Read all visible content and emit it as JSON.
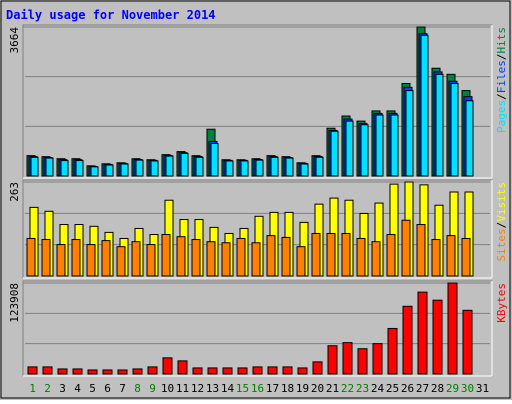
{
  "title": "Daily usage for November 2014",
  "separator": "/",
  "chart_data": [
    {
      "type": "bar",
      "ylim": [
        0,
        3664
      ],
      "yticks": [
        3664
      ],
      "series": [
        {
          "name": "Hits",
          "color": "#008040",
          "values": [
            500,
            475,
            425,
            425,
            250,
            300,
            325,
            425,
            400,
            525,
            600,
            500,
            1150,
            400,
            400,
            425,
            500,
            475,
            325,
            500,
            1175,
            1475,
            1350,
            1600,
            1600,
            2275,
            3664,
            2650,
            2500,
            2100,
            null
          ]
        },
        {
          "name": "Files",
          "color": "#0040ff",
          "values": [
            480,
            455,
            400,
            400,
            235,
            285,
            310,
            405,
            385,
            505,
            575,
            480,
            850,
            385,
            385,
            405,
            480,
            455,
            310,
            480,
            1120,
            1400,
            1290,
            1540,
            1540,
            2180,
            3500,
            2560,
            2330,
            1950,
            null
          ]
        },
        {
          "name": "Pages",
          "color": "#00e0ff",
          "values": [
            460,
            440,
            380,
            380,
            225,
            270,
            295,
            390,
            370,
            490,
            555,
            460,
            800,
            370,
            370,
            390,
            460,
            440,
            295,
            460,
            1100,
            1350,
            1260,
            1500,
            1500,
            2100,
            3460,
            2500,
            2275,
            1850,
            null
          ]
        }
      ]
    },
    {
      "type": "bar",
      "ylim": [
        0,
        263
      ],
      "yticks": [
        263
      ],
      "series": [
        {
          "name": "Visits",
          "color": "#ffff00",
          "values": [
            192,
            181,
            144,
            144,
            139,
            122,
            105,
            133,
            116,
            212,
            158,
            158,
            136,
            119,
            133,
            167,
            178,
            178,
            150,
            201,
            218,
            212,
            175,
            204,
            257,
            263,
            255,
            198,
            235,
            235,
            null
          ]
        },
        {
          "name": "Sites",
          "color": "#ff8000",
          "values": [
            105,
            102,
            88,
            102,
            88,
            99,
            82,
            96,
            88,
            116,
            110,
            102,
            96,
            93,
            105,
            93,
            113,
            108,
            82,
            119,
            119,
            119,
            105,
            96,
            116,
            156,
            144,
            102,
            113,
            105,
            null
          ]
        }
      ]
    },
    {
      "type": "bar",
      "ylim": [
        0,
        123908
      ],
      "yticks": [
        123908
      ],
      "categories": [
        "1",
        "2",
        "3",
        "4",
        "5",
        "6",
        "7",
        "8",
        "9",
        "10",
        "11",
        "12",
        "13",
        "14",
        "15",
        "16",
        "17",
        "18",
        "19",
        "20",
        "21",
        "22",
        "23",
        "24",
        "25",
        "26",
        "27",
        "28",
        "29",
        "30",
        "31"
      ],
      "category_colors": [
        "#008000",
        "#008000",
        "#000000",
        "#000000",
        "#000000",
        "#000000",
        "#000000",
        "#008000",
        "#008000",
        "#000000",
        "#000000",
        "#000000",
        "#000000",
        "#000000",
        "#008000",
        "#008000",
        "#000000",
        "#000000",
        "#000000",
        "#000000",
        "#000000",
        "#008000",
        "#008000",
        "#000000",
        "#000000",
        "#000000",
        "#000000",
        "#000000",
        "#008000",
        "#008000",
        "#000000"
      ],
      "series": [
        {
          "name": "KBytes",
          "color": "#ff0000",
          "values": [
            9640,
            9640,
            6885,
            6885,
            5500,
            5500,
            5500,
            6885,
            9640,
            22000,
            17900,
            8260,
            8260,
            8260,
            8260,
            9640,
            9640,
            9640,
            8260,
            16500,
            38500,
            42700,
            34400,
            41300,
            62000,
            92200,
            111500,
            100500,
            123908,
            86700,
            null
          ]
        }
      ]
    }
  ]
}
